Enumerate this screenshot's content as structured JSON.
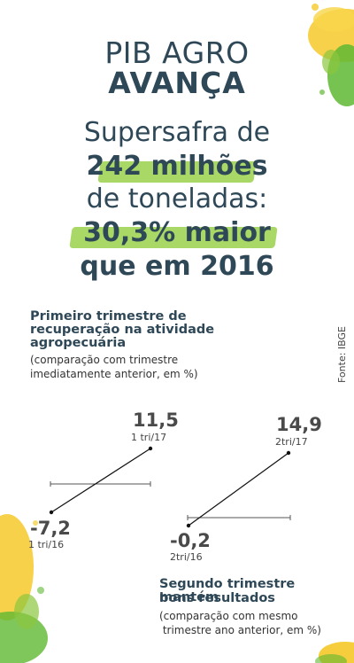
{
  "header": {
    "line1": "PIB AGRO",
    "line2": "AVANÇA"
  },
  "headline": {
    "l1": "Supersafra de",
    "l2": "242 milhões",
    "l3": "de toneladas:",
    "l4": "30,3% maior",
    "l5": "que em 2016"
  },
  "first": {
    "title_l1": "Primeiro trimestre de",
    "title_l2": "recuperação na atividade",
    "title_l3": "agropecuária",
    "note_l1": "(comparação com trimestre",
    "note_l2": "imediatamente anterior, em %)",
    "start_value": "-7,2",
    "start_period": "1 tri/16",
    "end_value": "11,5",
    "end_period": "1 tri/17"
  },
  "second": {
    "title_l1": "Segundo trimestre mantém",
    "title_l2": "bons resultados",
    "note_l1": "(comparação com mesmo",
    "note_l2": " trimestre ano anterior, em %)",
    "start_value": "-0,2",
    "start_period": "2tri/16",
    "end_value": "14,9",
    "end_period": "2tri/17"
  },
  "source": "Fonte: IBGE",
  "colors": {
    "text": "#2f4858",
    "highlight": "#9ad14b",
    "yellow": "#f4c20d",
    "green": "#5fb832"
  }
}
